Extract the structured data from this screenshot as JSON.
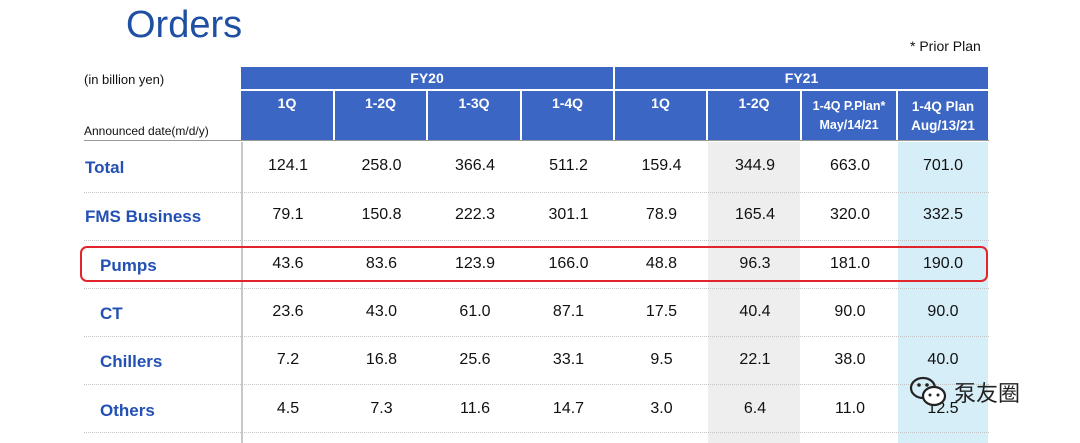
{
  "title": "Orders",
  "note": "* Prior Plan",
  "unit_label": "(in billion yen)",
  "announced_label": "Announced date(m/d/y)",
  "groups": [
    {
      "label": "FY20"
    },
    {
      "label": "FY21"
    }
  ],
  "columns": [
    {
      "label": "1Q"
    },
    {
      "label": "1-2Q"
    },
    {
      "label": "1-3Q"
    },
    {
      "label": "1-4Q"
    },
    {
      "label": "1Q"
    },
    {
      "label": "1-2Q"
    },
    {
      "label": "1-4Q P.Plan*",
      "sub": "May/14/21"
    },
    {
      "label": "1-4Q Plan",
      "sub": "Aug/13/21"
    }
  ],
  "rows": [
    {
      "label": "Total",
      "values": [
        "124.1",
        "258.0",
        "366.4",
        "511.2",
        "159.4",
        "344.9",
        "663.0",
        "701.0"
      ]
    },
    {
      "label": "FMS Business",
      "values": [
        "79.1",
        "150.8",
        "222.3",
        "301.1",
        "78.9",
        "165.4",
        "320.0",
        "332.5"
      ]
    },
    {
      "label": "Pumps",
      "values": [
        "43.6",
        "83.6",
        "123.9",
        "166.0",
        "48.8",
        "96.3",
        "181.0",
        "190.0"
      ]
    },
    {
      "label": "CT",
      "values": [
        "23.6",
        "43.0",
        "61.0",
        "87.1",
        "17.5",
        "40.4",
        "90.0",
        "90.0"
      ]
    },
    {
      "label": "Chillers",
      "values": [
        "7.2",
        "16.8",
        "25.6",
        "33.1",
        "9.5",
        "22.1",
        "38.0",
        "40.0"
      ]
    },
    {
      "label": "Others",
      "values": [
        "4.5",
        "7.3",
        "11.6",
        "14.7",
        "3.0",
        "6.4",
        "11.0",
        "12.5"
      ]
    }
  ],
  "watermark": "泵友圈",
  "colors": {
    "header": "#3c66c4",
    "label": "#2350b4",
    "highlight": "#e1252a",
    "plan_col": "#d6eef8"
  }
}
